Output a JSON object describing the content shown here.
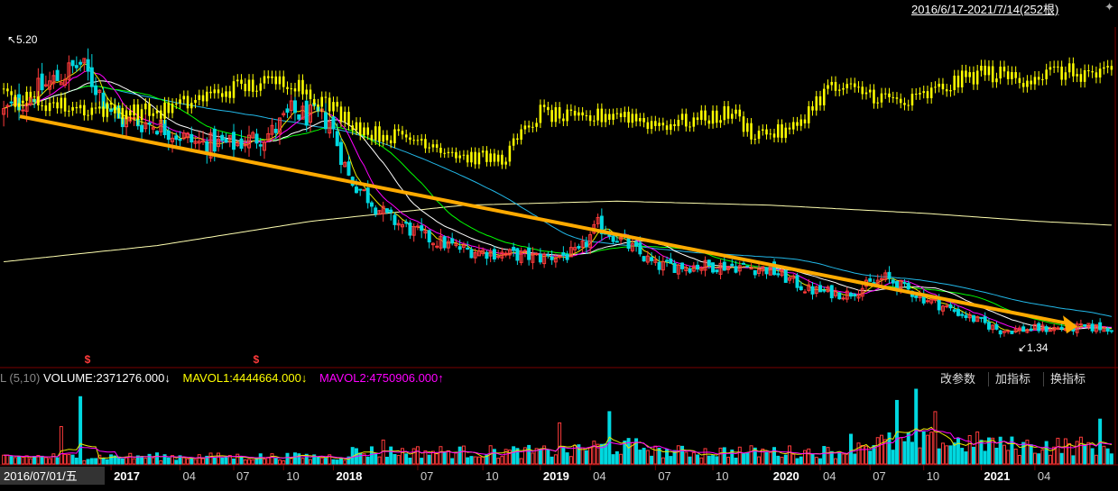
{
  "header": {
    "date_range": "2016/6/17-2021/7/14(252根)",
    "pin_glyph": "✦"
  },
  "price_panel": {
    "max_label": "↖5.20",
    "min_label": "↙1.34",
    "markers": [
      "$",
      "$"
    ]
  },
  "volume_panel": {
    "label_prefix": "L (5,10)",
    "volume": "VOLUME:2371276.000",
    "volume_arrow": "↓",
    "mavol1": "MAVOL1:4444664.000",
    "mavol1_arrow": "↓",
    "mavol2": "MAVOL2:4750906.000",
    "mavol2_arrow": "↑",
    "buttons": [
      "改参数",
      "加指标",
      "换指标"
    ]
  },
  "colors": {
    "background": "#000000",
    "up": "#ff3b3b",
    "down": "#00d8e0",
    "compare": "#ffff00",
    "ma_white": "#ffffff",
    "ma_yellow": "#e8e800",
    "ma_magenta": "#ff00ff",
    "ma_green": "#00ff00",
    "ma_cyan": "#22b8e8",
    "ma_long": "#ffffb0",
    "arrow": "#ffaa00",
    "grid": "#7a0000"
  },
  "chart_data": {
    "type": "candlestick",
    "x_axis": {
      "cursor_label": "2016/07/01/五",
      "ticks": [
        "2017",
        "04",
        "07",
        "10",
        "2018",
        "07",
        "10",
        "2019",
        "04",
        "07",
        "10",
        "2020",
        "04",
        "07",
        "10",
        "2021",
        "04"
      ]
    },
    "price_range": [
      1.34,
      5.2
    ],
    "trend_arrow": {
      "from": [
        0,
        4.25
      ],
      "to": [
        1,
        1.65
      ]
    },
    "anchors": {
      "close": [
        [
          0,
          4.3
        ],
        [
          10,
          4.6
        ],
        [
          20,
          4.9
        ],
        [
          30,
          4.2
        ],
        [
          40,
          4.15
        ],
        [
          50,
          3.92
        ],
        [
          60,
          3.9
        ],
        [
          70,
          4.05
        ],
        [
          75,
          4.3
        ],
        [
          85,
          4.2
        ],
        [
          90,
          3.5
        ],
        [
          100,
          3.0
        ],
        [
          110,
          2.75
        ],
        [
          120,
          2.6
        ],
        [
          130,
          2.55
        ],
        [
          140,
          2.5
        ],
        [
          150,
          2.55
        ],
        [
          155,
          2.9
        ],
        [
          160,
          2.75
        ],
        [
          170,
          2.4
        ],
        [
          180,
          2.4
        ],
        [
          190,
          2.4
        ],
        [
          200,
          2.35
        ],
        [
          210,
          2.1
        ],
        [
          220,
          2.05
        ],
        [
          230,
          2.25
        ],
        [
          240,
          2.0
        ],
        [
          250,
          1.8
        ],
        [
          260,
          1.6
        ],
        [
          270,
          1.62
        ],
        [
          290,
          1.64
        ]
      ],
      "compare": [
        [
          0,
          4.5
        ],
        [
          20,
          4.35
        ],
        [
          40,
          4.3
        ],
        [
          60,
          4.6
        ],
        [
          75,
          4.7
        ],
        [
          95,
          4.05
        ],
        [
          110,
          3.95
        ],
        [
          120,
          3.75
        ],
        [
          130,
          3.72
        ],
        [
          140,
          4.3
        ],
        [
          150,
          4.2
        ],
        [
          160,
          4.3
        ],
        [
          170,
          4.15
        ],
        [
          180,
          4.2
        ],
        [
          190,
          4.3
        ],
        [
          195,
          4.05
        ],
        [
          205,
          4.05
        ],
        [
          215,
          4.6
        ],
        [
          225,
          4.55
        ],
        [
          235,
          4.4
        ],
        [
          245,
          4.6
        ],
        [
          255,
          4.8
        ],
        [
          265,
          4.72
        ],
        [
          275,
          4.8
        ],
        [
          290,
          4.75
        ]
      ],
      "long_ma": [
        [
          0,
          2.45
        ],
        [
          40,
          2.65
        ],
        [
          80,
          2.95
        ],
        [
          120,
          3.15
        ],
        [
          160,
          3.2
        ],
        [
          200,
          3.15
        ],
        [
          240,
          3.05
        ],
        [
          270,
          2.95
        ],
        [
          290,
          2.9
        ]
      ]
    },
    "volume_levels": [
      {
        "start": 0,
        "level": 0.12
      },
      {
        "start": 90,
        "level": 0.2
      },
      {
        "start": 150,
        "level": 0.28
      },
      {
        "start": 170,
        "level": 0.2
      },
      {
        "start": 220,
        "level": 0.35
      },
      {
        "start": 260,
        "level": 0.3
      }
    ],
    "volume_spikes": [
      [
        15,
        0.5
      ],
      [
        20,
        0.9
      ],
      [
        99,
        0.32
      ],
      [
        145,
        0.55
      ],
      [
        158,
        0.7
      ],
      [
        233,
        0.85
      ],
      [
        238,
        1.0
      ],
      [
        243,
        0.7
      ],
      [
        286,
        0.6
      ]
    ]
  }
}
